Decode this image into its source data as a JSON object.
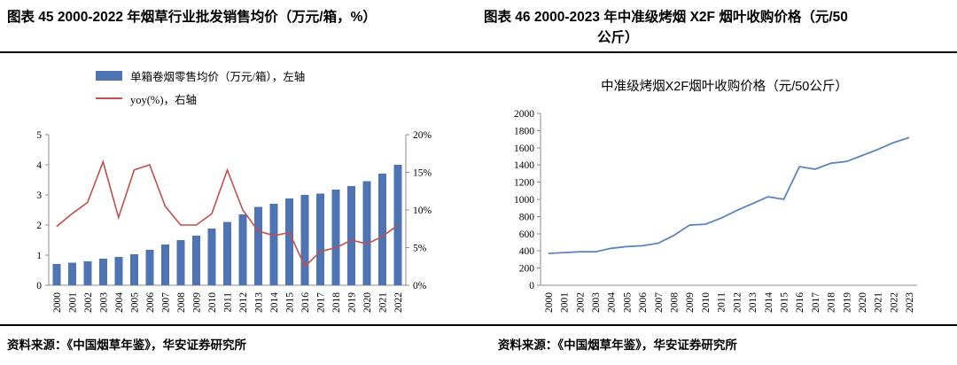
{
  "header": {
    "left_title": "图表 45 2000-2022 年烟草行业批发销售均价（万元/箱，%）",
    "right_title_line1": "图表 46 2000-2023 年中准级烤烟 X2F 烟叶收购价格（元/50",
    "right_title_line2": "公斤）"
  },
  "footer": {
    "left_source": "资料来源：《中国烟草年鉴》，华安证券研究所",
    "right_source": "资料来源：《中国烟草年鉴》，华安证券研究所"
  },
  "chart_data": [
    {
      "type": "bar",
      "title": "2000-2022年烟草行业批发销售均价（万元/箱，%）",
      "categories": [
        "2000",
        "2001",
        "2002",
        "2003",
        "2004",
        "2005",
        "2006",
        "2007",
        "2008",
        "2009",
        "2010",
        "2011",
        "2012",
        "2013",
        "2014",
        "2015",
        "2016",
        "2017",
        "2018",
        "2019",
        "2020",
        "2021",
        "2022"
      ],
      "series": [
        {
          "name": "单箱卷烟零售均价（万元/箱），左轴",
          "type": "bar",
          "axis": "left",
          "color": "#4e74b4",
          "values": [
            0.7,
            0.75,
            0.8,
            0.88,
            0.94,
            1.03,
            1.18,
            1.35,
            1.5,
            1.65,
            1.88,
            2.1,
            2.35,
            2.6,
            2.7,
            2.88,
            3.0,
            3.05,
            3.18,
            3.3,
            3.45,
            3.7,
            4.0
          ]
        },
        {
          "name": "yoy(%)，右轴",
          "type": "line",
          "axis": "right",
          "color": "#c0504d",
          "values": [
            7.8,
            9.5,
            11.0,
            16.4,
            9.0,
            15.3,
            16.0,
            10.5,
            8.0,
            8.0,
            9.5,
            15.3,
            10.0,
            7.2,
            6.6,
            7.0,
            2.5,
            4.5,
            5.0,
            6.0,
            5.5,
            6.5,
            8.0
          ]
        }
      ],
      "left_axis": {
        "min": 0,
        "max": 5,
        "ticks": [
          0,
          1,
          2,
          3,
          4,
          5
        ]
      },
      "right_axis": {
        "min": 0,
        "max": 20,
        "tick_labels": [
          "0%",
          "5%",
          "10%",
          "15%",
          "20%"
        ]
      },
      "legend_position": "top",
      "grid": false
    },
    {
      "type": "line",
      "title": "中准级烤烟X2F烟叶收购价格（元/50公斤）",
      "categories": [
        "2000",
        "2001",
        "2002",
        "2003",
        "2004",
        "2005",
        "2006",
        "2007",
        "2008",
        "2009",
        "2010",
        "2011",
        "2012",
        "2013",
        "2014",
        "2015",
        "2016",
        "2017",
        "2018",
        "2019",
        "2020",
        "2021",
        "2022",
        "2023"
      ],
      "series": [
        {
          "name": "中准级烤烟X2F烟叶收购价格",
          "type": "line",
          "color": "#5b84be",
          "values": [
            370,
            380,
            390,
            390,
            430,
            450,
            460,
            490,
            580,
            700,
            710,
            780,
            870,
            950,
            1030,
            1000,
            1380,
            1350,
            1420,
            1440,
            1510,
            1580,
            1660,
            1720
          ]
        }
      ],
      "y_axis": {
        "min": 0,
        "max": 2000,
        "step": 200
      },
      "grid": false
    }
  ]
}
